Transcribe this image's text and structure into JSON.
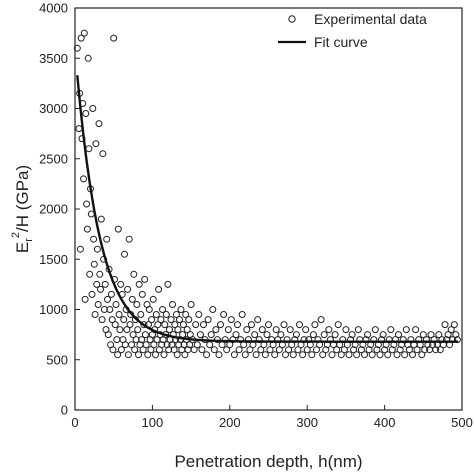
{
  "chart_data": {
    "type": "scatter",
    "title": "",
    "xlabel": "Penetration depth, h(nm)",
    "ylabel_parts": {
      "base": "E",
      "sub": "r",
      "sup": "2",
      "rest": "/H (GPa)"
    },
    "xlim": [
      0,
      500
    ],
    "ylim": [
      0,
      4000
    ],
    "xticks": [
      0,
      100,
      200,
      300,
      400,
      500
    ],
    "yticks": [
      0,
      500,
      1000,
      1500,
      2000,
      2500,
      3000,
      3500,
      4000
    ],
    "grid": false,
    "legend_position": "top-right",
    "series": [
      {
        "name": "Experimental data",
        "style": "open-circle",
        "color": "#222222",
        "points": [
          [
            3,
            3600
          ],
          [
            5,
            2800
          ],
          [
            6,
            3150
          ],
          [
            7,
            1600
          ],
          [
            8,
            3700
          ],
          [
            9,
            2700
          ],
          [
            10,
            3050
          ],
          [
            11,
            2300
          ],
          [
            12,
            3750
          ],
          [
            13,
            1100
          ],
          [
            14,
            2950
          ],
          [
            15,
            2050
          ],
          [
            16,
            1800
          ],
          [
            17,
            3500
          ],
          [
            18,
            2600
          ],
          [
            19,
            1350
          ],
          [
            20,
            2200
          ],
          [
            21,
            1950
          ],
          [
            22,
            1150
          ],
          [
            23,
            3000
          ],
          [
            24,
            1700
          ],
          [
            25,
            1450
          ],
          [
            26,
            950
          ],
          [
            27,
            2650
          ],
          [
            28,
            1250
          ],
          [
            29,
            1600
          ],
          [
            30,
            1050
          ],
          [
            31,
            2850
          ],
          [
            32,
            1350
          ],
          [
            33,
            1200
          ],
          [
            34,
            1900
          ],
          [
            35,
            900
          ],
          [
            36,
            2550
          ],
          [
            37,
            1500
          ],
          [
            38,
            1000
          ],
          [
            39,
            1250
          ],
          [
            40,
            800
          ],
          [
            41,
            1700
          ],
          [
            42,
            1100
          ],
          [
            43,
            750
          ],
          [
            44,
            1400
          ],
          [
            45,
            1000
          ],
          [
            46,
            650
          ],
          [
            47,
            1150
          ],
          [
            48,
            900
          ],
          [
            49,
            600
          ],
          [
            50,
            3700
          ],
          [
            51,
            1300
          ],
          [
            52,
            850
          ],
          [
            53,
            1050
          ],
          [
            54,
            700
          ],
          [
            55,
            550
          ],
          [
            56,
            1800
          ],
          [
            57,
            950
          ],
          [
            58,
            800
          ],
          [
            59,
            1250
          ],
          [
            60,
            600
          ],
          [
            61,
            1150
          ],
          [
            62,
            700
          ],
          [
            63,
            900
          ],
          [
            64,
            1550
          ],
          [
            65,
            650
          ],
          [
            66,
            1000
          ],
          [
            67,
            800
          ],
          [
            68,
            1200
          ],
          [
            69,
            550
          ],
          [
            70,
            1700
          ],
          [
            71,
            850
          ],
          [
            72,
            950
          ],
          [
            73,
            650
          ],
          [
            74,
            1100
          ],
          [
            75,
            750
          ],
          [
            76,
            1350
          ],
          [
            77,
            600
          ],
          [
            78,
            900
          ],
          [
            79,
            700
          ],
          [
            80,
            1050
          ],
          [
            81,
            800
          ],
          [
            82,
            550
          ],
          [
            83,
            1250
          ],
          [
            84,
            650
          ],
          [
            85,
            950
          ],
          [
            86,
            700
          ],
          [
            87,
            1150
          ],
          [
            88,
            600
          ],
          [
            89,
            850
          ],
          [
            90,
            1300
          ],
          [
            91,
            750
          ],
          [
            92,
            650
          ],
          [
            93,
            1050
          ],
          [
            94,
            550
          ],
          [
            95,
            850
          ],
          [
            96,
            1000
          ],
          [
            97,
            700
          ],
          [
            98,
            600
          ],
          [
            99,
            900
          ],
          [
            100,
            750
          ],
          [
            101,
            1100
          ],
          [
            102,
            650
          ],
          [
            103,
            800
          ],
          [
            104,
            550
          ],
          [
            105,
            950
          ],
          [
            106,
            700
          ],
          [
            107,
            850
          ],
          [
            108,
            1200
          ],
          [
            109,
            600
          ],
          [
            110,
            750
          ],
          [
            111,
            900
          ],
          [
            112,
            650
          ],
          [
            113,
            1000
          ],
          [
            114,
            700
          ],
          [
            115,
            550
          ],
          [
            116,
            850
          ],
          [
            117,
            750
          ],
          [
            118,
            950
          ],
          [
            119,
            650
          ],
          [
            120,
            1250
          ],
          [
            121,
            600
          ],
          [
            122,
            800
          ],
          [
            123,
            700
          ],
          [
            124,
            900
          ],
          [
            125,
            650
          ],
          [
            126,
            1050
          ],
          [
            127,
            750
          ],
          [
            128,
            600
          ],
          [
            129,
            850
          ],
          [
            130,
            700
          ],
          [
            131,
            950
          ],
          [
            132,
            550
          ],
          [
            133,
            800
          ],
          [
            134,
            650
          ],
          [
            135,
            900
          ],
          [
            136,
            700
          ],
          [
            137,
            1000
          ],
          [
            138,
            600
          ],
          [
            139,
            750
          ],
          [
            140,
            850
          ],
          [
            141,
            650
          ],
          [
            142,
            550
          ],
          [
            143,
            950
          ],
          [
            144,
            700
          ],
          [
            145,
            800
          ],
          [
            146,
            600
          ],
          [
            147,
            900
          ],
          [
            148,
            650
          ],
          [
            149,
            750
          ],
          [
            150,
            1050
          ],
          [
            152,
            700
          ],
          [
            154,
            600
          ],
          [
            156,
            850
          ],
          [
            158,
            650
          ],
          [
            160,
            950
          ],
          [
            162,
            750
          ],
          [
            164,
            600
          ],
          [
            166,
            850
          ],
          [
            168,
            700
          ],
          [
            170,
            550
          ],
          [
            172,
            900
          ],
          [
            174,
            650
          ],
          [
            176,
            750
          ],
          [
            178,
            1000
          ],
          [
            180,
            600
          ],
          [
            182,
            800
          ],
          [
            184,
            700
          ],
          [
            186,
            550
          ],
          [
            188,
            850
          ],
          [
            190,
            650
          ],
          [
            192,
            950
          ],
          [
            194,
            700
          ],
          [
            196,
            600
          ],
          [
            198,
            800
          ],
          [
            200,
            650
          ],
          [
            202,
            900
          ],
          [
            204,
            700
          ],
          [
            206,
            550
          ],
          [
            208,
            750
          ],
          [
            210,
            850
          ],
          [
            212,
            600
          ],
          [
            214,
            700
          ],
          [
            216,
            950
          ],
          [
            218,
            650
          ],
          [
            220,
            550
          ],
          [
            222,
            800
          ],
          [
            224,
            700
          ],
          [
            226,
            600
          ],
          [
            228,
            850
          ],
          [
            230,
            650
          ],
          [
            232,
            750
          ],
          [
            234,
            550
          ],
          [
            236,
            900
          ],
          [
            238,
            700
          ],
          [
            240,
            600
          ],
          [
            242,
            800
          ],
          [
            244,
            650
          ],
          [
            246,
            550
          ],
          [
            248,
            750
          ],
          [
            250,
            850
          ],
          [
            252,
            600
          ],
          [
            254,
            700
          ],
          [
            256,
            650
          ],
          [
            258,
            550
          ],
          [
            260,
            800
          ],
          [
            262,
            700
          ],
          [
            264,
            600
          ],
          [
            266,
            750
          ],
          [
            268,
            650
          ],
          [
            270,
            850
          ],
          [
            272,
            550
          ],
          [
            274,
            700
          ],
          [
            276,
            600
          ],
          [
            278,
            800
          ],
          [
            280,
            650
          ],
          [
            282,
            550
          ],
          [
            284,
            700
          ],
          [
            286,
            750
          ],
          [
            288,
            600
          ],
          [
            290,
            850
          ],
          [
            292,
            650
          ],
          [
            294,
            550
          ],
          [
            296,
            700
          ],
          [
            298,
            800
          ],
          [
            300,
            600
          ],
          [
            302,
            700
          ],
          [
            304,
            650
          ],
          [
            306,
            550
          ],
          [
            308,
            750
          ],
          [
            310,
            850
          ],
          [
            312,
            600
          ],
          [
            314,
            700
          ],
          [
            316,
            650
          ],
          [
            318,
            900
          ],
          [
            320,
            550
          ],
          [
            322,
            750
          ],
          [
            324,
            600
          ],
          [
            326,
            650
          ],
          [
            328,
            800
          ],
          [
            330,
            700
          ],
          [
            332,
            550
          ],
          [
            334,
            650
          ],
          [
            336,
            750
          ],
          [
            338,
            600
          ],
          [
            340,
            850
          ],
          [
            342,
            650
          ],
          [
            344,
            550
          ],
          [
            346,
            700
          ],
          [
            348,
            600
          ],
          [
            350,
            800
          ],
          [
            352,
            650
          ],
          [
            354,
            550
          ],
          [
            356,
            700
          ],
          [
            358,
            750
          ],
          [
            360,
            600
          ],
          [
            362,
            650
          ],
          [
            364,
            550
          ],
          [
            366,
            800
          ],
          [
            368,
            700
          ],
          [
            370,
            600
          ],
          [
            372,
            650
          ],
          [
            374,
            550
          ],
          [
            376,
            700
          ],
          [
            378,
            750
          ],
          [
            380,
            600
          ],
          [
            382,
            650
          ],
          [
            384,
            550
          ],
          [
            386,
            700
          ],
          [
            388,
            800
          ],
          [
            390,
            600
          ],
          [
            392,
            650
          ],
          [
            394,
            550
          ],
          [
            396,
            700
          ],
          [
            398,
            750
          ],
          [
            400,
            600
          ],
          [
            402,
            650
          ],
          [
            404,
            550
          ],
          [
            406,
            700
          ],
          [
            408,
            800
          ],
          [
            410,
            600
          ],
          [
            412,
            650
          ],
          [
            414,
            700
          ],
          [
            416,
            550
          ],
          [
            418,
            750
          ],
          [
            420,
            600
          ],
          [
            422,
            650
          ],
          [
            424,
            700
          ],
          [
            426,
            550
          ],
          [
            428,
            800
          ],
          [
            430,
            650
          ],
          [
            432,
            600
          ],
          [
            434,
            700
          ],
          [
            436,
            550
          ],
          [
            438,
            650
          ],
          [
            440,
            800
          ],
          [
            442,
            600
          ],
          [
            444,
            700
          ],
          [
            446,
            650
          ],
          [
            448,
            550
          ],
          [
            450,
            750
          ],
          [
            452,
            600
          ],
          [
            454,
            700
          ],
          [
            456,
            650
          ],
          [
            458,
            600
          ],
          [
            460,
            750
          ],
          [
            462,
            650
          ],
          [
            464,
            700
          ],
          [
            466,
            600
          ],
          [
            468,
            650
          ],
          [
            470,
            750
          ],
          [
            472,
            600
          ],
          [
            474,
            700
          ],
          [
            476,
            650
          ],
          [
            478,
            850
          ],
          [
            480,
            700
          ],
          [
            482,
            750
          ],
          [
            484,
            650
          ],
          [
            486,
            800
          ],
          [
            488,
            700
          ],
          [
            490,
            850
          ],
          [
            492,
            750
          ],
          [
            494,
            700
          ]
        ]
      },
      {
        "name": "Fit curve",
        "style": "line",
        "color": "#111111",
        "y0": 680,
        "amplitude": 2920,
        "decay": 31
      }
    ]
  }
}
